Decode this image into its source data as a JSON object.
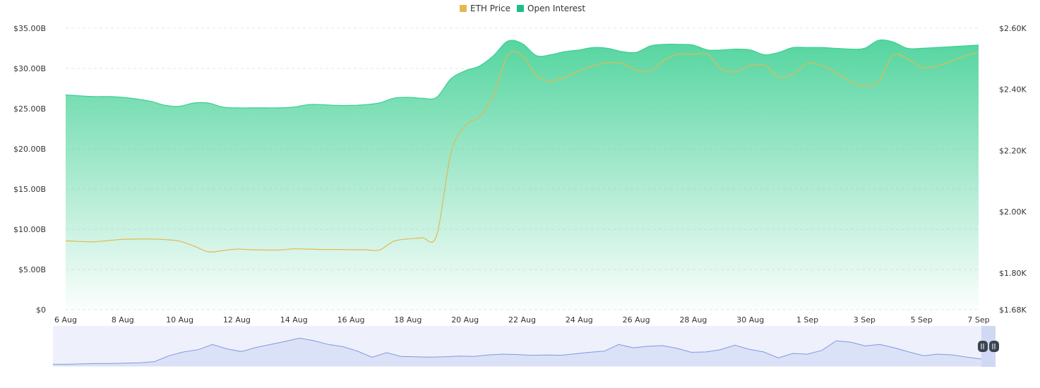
{
  "chart_data": {
    "type": "area",
    "legend": {
      "placement": "top-center",
      "items": [
        {
          "key": "eth",
          "label": "ETH Price",
          "color": "#e2b950"
        },
        {
          "key": "oi",
          "label": "Open Interest",
          "color": "#1bbf86"
        }
      ]
    },
    "x_tick_labels": [
      "6 Aug",
      "8 Aug",
      "10 Aug",
      "12 Aug",
      "14 Aug",
      "16 Aug",
      "18 Aug",
      "20 Aug",
      "22 Aug",
      "24 Aug",
      "26 Aug",
      "28 Aug",
      "30 Aug",
      "1 Sep",
      "3 Sep",
      "5 Sep",
      "7 Sep"
    ],
    "y_left": {
      "ticks": [
        "$0",
        "$5.00B",
        "$10.00B",
        "$15.00B",
        "$20.00B",
        "$25.00B",
        "$30.00B",
        "$35.00B"
      ],
      "range": [
        0,
        35000000000
      ]
    },
    "y_right": {
      "ticks": [
        "$1.68K",
        "$1.80K",
        "$2.00K",
        "$2.20K",
        "$2.40K",
        "$2.60K"
      ],
      "range": [
        1680,
        2600
      ]
    },
    "grid": "horizontal-dashed",
    "series": [
      {
        "name": "Open Interest",
        "axis": "left",
        "unit": "USD billions",
        "color": "#1bbf86",
        "x": [
          0,
          0.5,
          1,
          1.5,
          2,
          2.5,
          3,
          3.5,
          4,
          4.5,
          5,
          5.5,
          6,
          6.5,
          7,
          7.5,
          8,
          8.5,
          9,
          9.5,
          10,
          10.5,
          11,
          11.5,
          12,
          12.5,
          13,
          13.5,
          14,
          14.5,
          15,
          15.5,
          16,
          16.5,
          17,
          17.5,
          18,
          18.5,
          19,
          19.5,
          20,
          20.5,
          21,
          21.5,
          22,
          22.5,
          23,
          23.5,
          24,
          24.5,
          25,
          25.5,
          26,
          26.5,
          27,
          27.5,
          28,
          28.5,
          29,
          29.5,
          30,
          30.5,
          31,
          31.5,
          32
        ],
        "values": [
          26.7,
          26.6,
          26.5,
          26.5,
          26.4,
          26.2,
          25.9,
          25.4,
          25.3,
          25.7,
          25.7,
          25.2,
          25.1,
          25.1,
          25.1,
          25.1,
          25.2,
          25.5,
          25.5,
          25.4,
          25.4,
          25.5,
          25.7,
          26.3,
          26.4,
          26.3,
          26.4,
          28.7,
          29.7,
          30.3,
          31.6,
          33.4,
          33.1,
          31.6,
          31.7,
          32.1,
          32.3,
          32.6,
          32.5,
          32.1,
          32.0,
          32.8,
          33.0,
          33.0,
          32.9,
          32.3,
          32.3,
          32.4,
          32.3,
          31.7,
          32.0,
          32.6,
          32.6,
          32.6,
          32.5,
          32.4,
          32.5,
          33.5,
          33.3,
          32.5,
          32.5,
          32.6,
          32.7,
          32.8,
          32.9
        ]
      },
      {
        "name": "ETH Price",
        "axis": "right",
        "unit": "USD",
        "color": "#e2b950",
        "x": [
          0,
          0.5,
          1,
          1.5,
          2,
          2.5,
          3,
          3.5,
          4,
          4.5,
          5,
          5.5,
          6,
          6.5,
          7,
          7.5,
          8,
          8.5,
          9,
          9.5,
          10,
          10.5,
          11,
          11.5,
          12,
          12.5,
          13,
          13.5,
          14,
          14.5,
          15,
          15.5,
          16,
          16.5,
          17,
          17.5,
          18,
          18.5,
          19,
          19.5,
          20,
          20.5,
          21,
          21.5,
          22,
          22.5,
          23,
          23.5,
          24,
          24.5,
          25,
          25.5,
          26,
          26.5,
          27,
          27.5,
          28,
          28.5,
          29,
          29.5,
          30,
          30.5,
          31,
          31.5,
          32
        ],
        "values": [
          1905,
          1903,
          1902,
          1906,
          1910,
          1911,
          1911,
          1909,
          1904,
          1888,
          1869,
          1873,
          1878,
          1876,
          1875,
          1875,
          1879,
          1878,
          1877,
          1877,
          1876,
          1876,
          1875,
          1904,
          1911,
          1915,
          1922,
          2190,
          2281,
          2310,
          2382,
          2512,
          2512,
          2445,
          2428,
          2440,
          2460,
          2478,
          2488,
          2485,
          2463,
          2460,
          2497,
          2515,
          2515,
          2515,
          2466,
          2458,
          2478,
          2478,
          2440,
          2450,
          2485,
          2478,
          2455,
          2425,
          2412,
          2425,
          2512,
          2500,
          2472,
          2475,
          2491,
          2508,
          2522
        ]
      }
    ],
    "navigator": {
      "type": "area",
      "color": "#7e95e0",
      "x": [
        0,
        0.5,
        1,
        1.5,
        2,
        2.5,
        3,
        3.5,
        4,
        4.5,
        5,
        5.5,
        6,
        6.5,
        7,
        7.5,
        8,
        8.5,
        9,
        9.5,
        10,
        10.5,
        11,
        11.5,
        12,
        12.5,
        13,
        13.5,
        14,
        14.5,
        15,
        15.5,
        16,
        16.5,
        17,
        17.5,
        18,
        18.5,
        19,
        19.5,
        20,
        20.5,
        21,
        21.5,
        22,
        22.5,
        23,
        23.5,
        24,
        24.5,
        25,
        25.5,
        26,
        26.5,
        27,
        27.5,
        28,
        28.5,
        29,
        29.5,
        30,
        30.5,
        31,
        31.5,
        32
      ],
      "values": [
        0.05,
        0.05,
        0.06,
        0.07,
        0.07,
        0.08,
        0.09,
        0.12,
        0.28,
        0.38,
        0.44,
        0.58,
        0.46,
        0.39,
        0.5,
        0.58,
        0.66,
        0.75,
        0.68,
        0.58,
        0.52,
        0.4,
        0.24,
        0.36,
        0.26,
        0.25,
        0.24,
        0.25,
        0.27,
        0.26,
        0.3,
        0.32,
        0.31,
        0.29,
        0.3,
        0.29,
        0.33,
        0.37,
        0.4,
        0.58,
        0.49,
        0.53,
        0.55,
        0.48,
        0.37,
        0.38,
        0.44,
        0.56,
        0.45,
        0.38,
        0.22,
        0.34,
        0.32,
        0.42,
        0.68,
        0.64,
        0.54,
        0.58,
        0.49,
        0.38,
        0.28,
        0.32,
        0.3,
        0.24,
        0.19
      ]
    }
  }
}
